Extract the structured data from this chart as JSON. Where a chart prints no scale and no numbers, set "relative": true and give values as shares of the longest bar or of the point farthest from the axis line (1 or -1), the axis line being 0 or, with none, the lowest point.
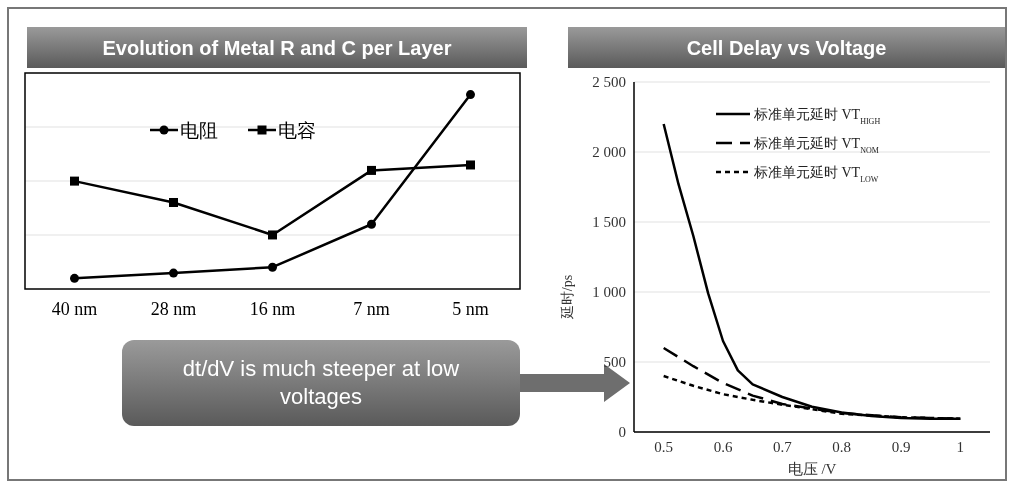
{
  "chart_data": [
    {
      "type": "line",
      "title": "Evolution of Metal R and C per Layer",
      "categories": [
        "40 nm",
        "28 nm",
        "16 nm",
        "7 nm",
        "5 nm"
      ],
      "relative": true,
      "grid": "y",
      "legend": "top",
      "series": [
        {
          "name": "电阻",
          "color": "#000000",
          "marker": "circle",
          "values": [
            0.055,
            0.082,
            0.112,
            0.333,
            1
          ]
        },
        {
          "name": "电容",
          "color": "#000000",
          "marker": "square",
          "values": [
            0.555,
            0.445,
            0.278,
            0.61,
            0.638
          ]
        }
      ],
      "annotations": [
        "dt/dV is much steeper at low voltages"
      ]
    },
    {
      "type": "line",
      "title": "Cell Delay vs Voltage",
      "xlabel": "电压 /V",
      "ylabel": "延时/ps",
      "xlim": [
        0.45,
        1.05
      ],
      "xticks": [
        0.5,
        0.6,
        0.7,
        0.8,
        0.9,
        1
      ],
      "ylim": [
        0,
        2500
      ],
      "yticks": [
        0,
        500,
        {
          "value": 1000,
          "label": "1 000"
        },
        {
          "value": 1500,
          "label": "1 500"
        },
        {
          "value": 2000,
          "label": "2 000"
        },
        {
          "value": 2500,
          "label": "2 500"
        }
      ],
      "grid": "y",
      "legend": "top right",
      "series": [
        {
          "name": "标准单元延时 VT$_{HIGH}$",
          "color": "#000000",
          "line_style": "solid",
          "x": [
            0.5,
            0.525,
            0.55,
            0.575,
            0.6,
            0.625,
            0.65,
            0.7,
            0.75,
            0.8,
            0.85,
            0.9,
            0.95,
            1
          ],
          "values": [
            2200,
            1770,
            1400,
            990,
            650,
            440,
            340,
            250,
            180,
            140,
            115,
            100,
            95,
            95
          ]
        },
        {
          "name": "标准单元延时 VT$_{NOM}$",
          "color": "#000000",
          "line_style": "dashed",
          "x": [
            0.5,
            0.55,
            0.6,
            0.65,
            0.7,
            0.8,
            0.9,
            1
          ],
          "values": [
            600,
            470,
            350,
            260,
            200,
            135,
            105,
            95
          ]
        },
        {
          "name": "标准单元延时 VT$_{LOW}$",
          "color": "#000000",
          "line_style": "dotted",
          "x": [
            0.5,
            0.55,
            0.6,
            0.65,
            0.7,
            0.8,
            0.9,
            1
          ],
          "values": [
            400,
            330,
            270,
            230,
            195,
            130,
            105,
            95
          ]
        }
      ]
    }
  ]
}
